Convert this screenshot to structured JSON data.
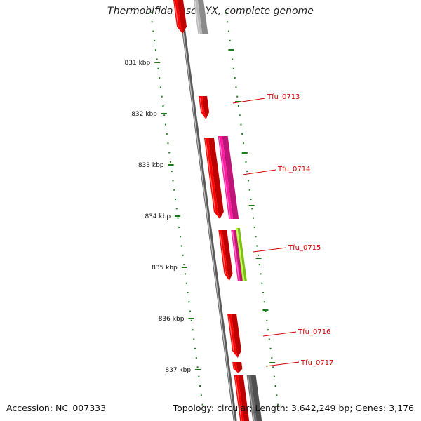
{
  "title": "Thermobifida fusca YX, complete genome",
  "footer": {
    "accession": "Accession: NC_007333",
    "topology": "Topology: circular; Length: 3,642,249 bp; Genes: 3,176"
  },
  "colors": {
    "backbone": "#8a8a8a",
    "tick": "#1a7a1a",
    "gene_red": "#ff0000",
    "gene_pink": "#ff1aa0",
    "gene_lime": "#a8ff1a",
    "gene_grey": "#b8b8b8",
    "gene_darkgrey": "#6a6a6a",
    "label": "#d40000"
  },
  "scale": {
    "unit": "kbp",
    "labels": [
      "831 kbp",
      "832 kbp",
      "833 kbp",
      "834 kbp",
      "835 kbp",
      "836 kbp",
      "837 kbp"
    ]
  },
  "gene_labels": [
    "Tfu_0713",
    "Tfu_0714",
    "Tfu_0715",
    "Tfu_0716",
    "Tfu_0717"
  ]
}
